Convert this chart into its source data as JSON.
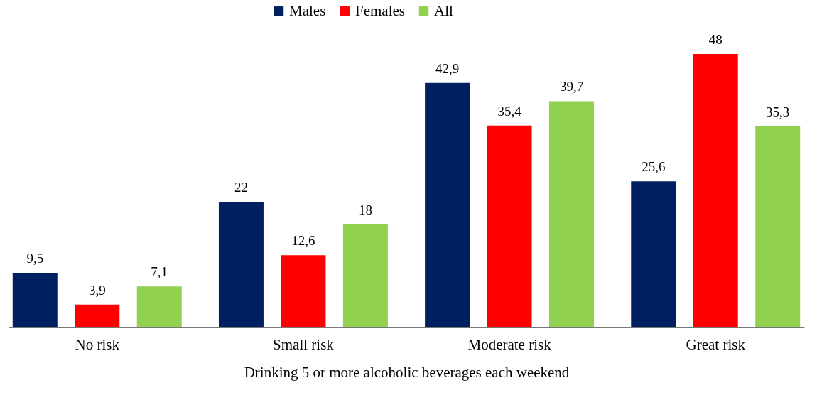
{
  "chart_data": {
    "type": "bar",
    "xlabel": "Drinking 5 or more alcoholic beverages each weekend",
    "categories": [
      "No risk",
      "Small risk",
      "Moderate risk",
      "Great risk"
    ],
    "series": [
      {
        "name": "Males",
        "color": "#002060",
        "values": [
          9.5,
          22,
          42.9,
          25.6
        ],
        "value_labels": [
          "9,5",
          "22",
          "42,9",
          "25,6"
        ]
      },
      {
        "name": "Females",
        "color": "#ff0000",
        "values": [
          3.9,
          12.6,
          35.4,
          48
        ],
        "value_labels": [
          "3,9",
          "12,6",
          "35,4",
          "48"
        ]
      },
      {
        "name": "All",
        "color": "#92d050",
        "values": [
          7.1,
          18,
          39.7,
          35.3
        ],
        "value_labels": [
          "7,1",
          "18",
          "39,7",
          "35,3"
        ]
      }
    ],
    "legend": "top",
    "grid": false
  }
}
